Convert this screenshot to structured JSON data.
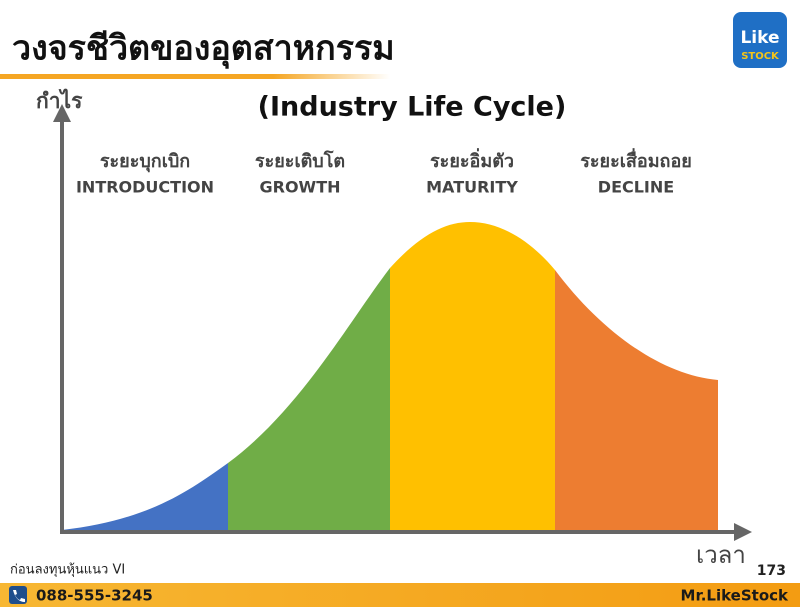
{
  "header": {
    "title": "วงจรชีวิตของอุตสาหกรรม",
    "subtitle": "(Industry Life Cycle)"
  },
  "logo": {
    "line1": "Like",
    "line2": "STOCK"
  },
  "axes": {
    "y_label": "กำไร",
    "x_label": "เวลา"
  },
  "stages": [
    {
      "thai": "ระยะบุกเบิก",
      "english": "INTRODUCTION"
    },
    {
      "thai": "ระยะเติบโต",
      "english": "GROWTH"
    },
    {
      "thai": "ระยะอิ่มตัว",
      "english": "MATURITY"
    },
    {
      "thai": "ระยะเสื่อมถอย",
      "english": "DECLINE"
    }
  ],
  "footer": {
    "note": "ก่อนลงทุนหุ้นแนว VI",
    "page": "173",
    "phone": "088-555-3245",
    "brand": "Mr.LikeStock"
  }
}
